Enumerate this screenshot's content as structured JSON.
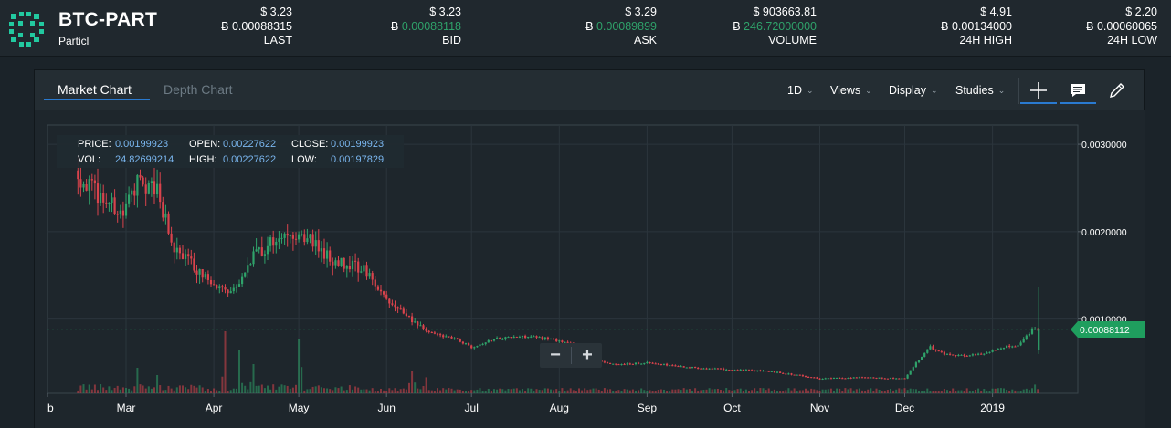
{
  "header": {
    "pair": "BTC-PART",
    "coin_name": "Particl",
    "stats": [
      {
        "usd": "$ 3.23",
        "btc_symbol": "Ƀ",
        "btc": "0.00088315",
        "label": "LAST",
        "green": false
      },
      {
        "usd": "$ 3.23",
        "btc_symbol": "Ƀ",
        "btc": "0.00088118",
        "label": "BID",
        "green": true
      },
      {
        "usd": "$ 3.29",
        "btc_symbol": "Ƀ",
        "btc": "0.00089899",
        "label": "ASK",
        "green": true
      },
      {
        "usd": "$ 903663.81",
        "btc_symbol": "Ƀ",
        "btc": "246.72000000",
        "label": "VOLUME",
        "green": true
      },
      {
        "usd": "$ 4.91",
        "btc_symbol": "Ƀ",
        "btc": "0.00134000",
        "label": "24H HIGH",
        "green": false
      },
      {
        "usd": "$ 2.20",
        "btc_symbol": "Ƀ",
        "btc": "0.00060065",
        "label": "24H LOW",
        "green": false
      }
    ]
  },
  "tabs": {
    "market": "Market Chart",
    "depth": "Depth Chart"
  },
  "toolbar": {
    "interval": "1D",
    "views": "Views",
    "display": "Display",
    "studies": "Studies"
  },
  "icons": {
    "crosshair": "crosshair-icon",
    "comment": "comment-icon",
    "draw": "pencil-icon",
    "zoom_out": "zoom-out-icon",
    "zoom_in": "zoom-in-icon",
    "logo": "particl-logo-icon"
  },
  "zoom": {
    "minus": "−",
    "plus": "+"
  },
  "infobox": {
    "price_label": "PRICE:",
    "price": "0.00199923",
    "open_label": "OPEN:",
    "open": "0.00227622",
    "close_label": "CLOSE:",
    "close": "0.00199923",
    "vol_label": "VOL:",
    "vol": "24.82699214",
    "high_label": "HIGH:",
    "high": "0.00227622",
    "low_label": "LOW:",
    "low": "0.00197829"
  },
  "colors": {
    "up": "#2fa26a",
    "down": "#d9434c",
    "accent": "#2a7ad0",
    "price_tag": "#1f9e5e",
    "logo": "#22c9a0"
  },
  "chart_data": {
    "type": "candlestick",
    "x_tick_labels": [
      "b",
      "Mar",
      "Apr",
      "May",
      "Jun",
      "Jul",
      "Aug",
      "Sep",
      "Oct",
      "Nov",
      "Dec",
      "2019"
    ],
    "y_tick_labels": [
      "0.0030000",
      "0.0020000",
      "0.0010000"
    ],
    "y_ticks": [
      0.003,
      0.002,
      0.001
    ],
    "ylim": [
      0.00015,
      0.00322
    ],
    "current_price": 0.00088112,
    "current_price_label": "0.00088112",
    "price_path": [
      [
        "Feb 10",
        0.0027
      ],
      [
        "Feb 20",
        0.0024
      ],
      [
        "Feb 28",
        0.0022
      ],
      [
        "Mar 5",
        0.0026
      ],
      [
        "Mar 12",
        0.00245
      ],
      [
        "Mar 18",
        0.0018
      ],
      [
        "Mar 25",
        0.0016
      ],
      [
        "Apr 1",
        0.0014
      ],
      [
        "Apr 5",
        0.0013
      ],
      [
        "Apr 10",
        0.0014
      ],
      [
        "Apr 15",
        0.0017
      ],
      [
        "Apr 22",
        0.0019
      ],
      [
        "Apr 28",
        0.002
      ],
      [
        "May 5",
        0.0019
      ],
      [
        "May 12",
        0.0017
      ],
      [
        "May 20",
        0.0016
      ],
      [
        "May 25",
        0.00155
      ],
      [
        "Jun 1",
        0.0012
      ],
      [
        "Jun 8",
        0.00105
      ],
      [
        "Jun 15",
        0.00085
      ],
      [
        "Jun 25",
        0.00078
      ],
      [
        "Jul 1",
        0.00068
      ],
      [
        "Jul 10",
        0.00078
      ],
      [
        "Jul 20",
        0.0008
      ],
      [
        "Jul 28",
        0.00078
      ],
      [
        "Aug 5",
        0.00072
      ],
      [
        "Aug 12",
        0.00055
      ],
      [
        "Aug 20",
        0.00048
      ],
      [
        "Sep 1",
        0.0005
      ],
      [
        "Sep 15",
        0.00045
      ],
      [
        "Oct 1",
        0.00042
      ],
      [
        "Oct 15",
        0.0004
      ],
      [
        "Nov 1",
        0.00032
      ],
      [
        "Nov 15",
        0.00033
      ],
      [
        "Dec 1",
        0.00032
      ],
      [
        "Dec 5",
        0.0005
      ],
      [
        "Dec 10",
        0.00068
      ],
      [
        "Dec 15",
        0.0006
      ],
      [
        "Dec 22",
        0.00058
      ],
      [
        "Dec 28",
        0.0006
      ],
      [
        "Jan 5",
        0.00068
      ],
      [
        "Jan 10",
        0.0007
      ],
      [
        "Jan 15",
        0.00088
      ],
      [
        "Jan 17",
        0.00088
      ]
    ],
    "volume_spikes": [
      {
        "date": "Mar 5",
        "height_rel": 0.35
      },
      {
        "date": "Mar 12",
        "height_rel": 0.25
      },
      {
        "date": "Apr 5",
        "height_rel": 0.85
      },
      {
        "date": "Apr 10",
        "height_rel": 0.6
      },
      {
        "date": "Apr 15",
        "height_rel": 0.4
      },
      {
        "date": "May 1",
        "height_rel": 0.75
      },
      {
        "date": "Jun 10",
        "height_rel": 0.3
      },
      {
        "date": "Jun 15",
        "height_rel": 0.22
      },
      {
        "date": "Jan 16",
        "height_rel": 0.12
      }
    ]
  }
}
